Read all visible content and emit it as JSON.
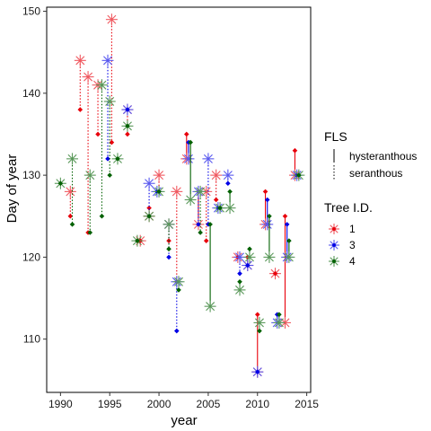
{
  "chart_data": {
    "type": "scatter",
    "xlabel": "year",
    "ylabel": "Day of year",
    "xlim": [
      1988.6,
      2015.4
    ],
    "ylim": [
      103.5,
      150.5
    ],
    "xticks": [
      1990,
      1995,
      2000,
      2005,
      2010,
      2015
    ],
    "yticks": [
      110,
      120,
      130,
      140,
      150
    ],
    "grid": false,
    "legend_position": "right",
    "colors": {
      "1": "#e8000b",
      "3": "#0000e6",
      "4": "#006000"
    },
    "legend": {
      "fls_title": "FLS",
      "fls_items": [
        {
          "label": "hysteranthous",
          "linestyle": "solid"
        },
        {
          "label": "seranthous",
          "linestyle": "dotted"
        }
      ],
      "tree_title": "Tree I.D.",
      "tree_items": [
        {
          "label": "1",
          "key": "1"
        },
        {
          "label": "3",
          "key": "3"
        },
        {
          "label": "4",
          "key": "4"
        }
      ]
    },
    "series": [
      {
        "name": "1",
        "pairs": [
          {
            "x": 1991.0,
            "flower": 128,
            "leaf": 125,
            "fls": "seranthous"
          },
          {
            "x": 1992.0,
            "flower": 144,
            "leaf": 138,
            "fls": "seranthous"
          },
          {
            "x": 1992.8,
            "flower": 142,
            "leaf": 123,
            "fls": "seranthous"
          },
          {
            "x": 1993.8,
            "flower": 141,
            "leaf": 135,
            "fls": "seranthous"
          },
          {
            "x": 1995.2,
            "flower": 149,
            "leaf": 134,
            "fls": "seranthous"
          },
          {
            "x": 1996.8,
            "flower": 138,
            "leaf": 135,
            "fls": "seranthous"
          },
          {
            "x": 1998.1,
            "flower": 122,
            "leaf": 122,
            "fls": "seranthous"
          },
          {
            "x": 1999.0,
            "flower": 125,
            "leaf": 126,
            "fls": "seranthous"
          },
          {
            "x": 2000.0,
            "flower": 130,
            "leaf": 128,
            "fls": "seranthous"
          },
          {
            "x": 2001.0,
            "flower": 124,
            "leaf": 122,
            "fls": "seranthous"
          },
          {
            "x": 2001.8,
            "flower": 128,
            "leaf": 117,
            "fls": "seranthous"
          },
          {
            "x": 2002.8,
            "flower": 132,
            "leaf": 135,
            "fls": "hysteranthous"
          },
          {
            "x": 2004.0,
            "flower": 124,
            "leaf": 128,
            "fls": "hysteranthous"
          },
          {
            "x": 2004.8,
            "flower": 128,
            "leaf": 122,
            "fls": "seranthous"
          },
          {
            "x": 2005.8,
            "flower": 130,
            "leaf": 127,
            "fls": "seranthous"
          },
          {
            "x": 2008.0,
            "flower": 120,
            "leaf": 120,
            "fls": "seranthous"
          },
          {
            "x": 2009.0,
            "flower": 119,
            "leaf": 120,
            "fls": "seranthous"
          },
          {
            "x": 2010.0,
            "flower": 106,
            "leaf": 113,
            "fls": "hysteranthous"
          },
          {
            "x": 2010.8,
            "flower": 124,
            "leaf": 128,
            "fls": "hysteranthous"
          },
          {
            "x": 2011.8,
            "flower": 118,
            "leaf": 118,
            "fls": "seranthous"
          },
          {
            "x": 2012.8,
            "flower": 112,
            "leaf": 125,
            "fls": "hysteranthous"
          },
          {
            "x": 2013.8,
            "flower": 130,
            "leaf": 133,
            "fls": "hysteranthous"
          }
        ]
      },
      {
        "name": "3",
        "pairs": [
          {
            "x": 1994.8,
            "flower": 144,
            "leaf": 132,
            "fls": "seranthous"
          },
          {
            "x": 1996.8,
            "flower": 138,
            "leaf": 138,
            "fls": "seranthous"
          },
          {
            "x": 1999.0,
            "flower": 129,
            "leaf": 125,
            "fls": "seranthous"
          },
          {
            "x": 1999.8,
            "flower": 128,
            "leaf": 128,
            "fls": "seranthous"
          },
          {
            "x": 2001.0,
            "flower": 124,
            "leaf": 120,
            "fls": "seranthous"
          },
          {
            "x": 2001.8,
            "flower": 117,
            "leaf": 111,
            "fls": "seranthous"
          },
          {
            "x": 2003.0,
            "flower": 132,
            "leaf": 134,
            "fls": "hysteranthous"
          },
          {
            "x": 2004.0,
            "flower": 128,
            "leaf": 124,
            "fls": "seranthous"
          },
          {
            "x": 2005.0,
            "flower": 132,
            "leaf": 124,
            "fls": "seranthous"
          },
          {
            "x": 2006.0,
            "flower": 126,
            "leaf": 126,
            "fls": "seranthous"
          },
          {
            "x": 2007.0,
            "flower": 130,
            "leaf": 129,
            "fls": "seranthous"
          },
          {
            "x": 2008.2,
            "flower": 120,
            "leaf": 118,
            "fls": "seranthous"
          },
          {
            "x": 2009.0,
            "flower": 119,
            "leaf": 119,
            "fls": "seranthous"
          },
          {
            "x": 2010.0,
            "flower": 106,
            "leaf": 106,
            "fls": "seranthous"
          },
          {
            "x": 2011.0,
            "flower": 124,
            "leaf": 127,
            "fls": "hysteranthous"
          },
          {
            "x": 2012.0,
            "flower": 112,
            "leaf": 113,
            "fls": "hysteranthous"
          },
          {
            "x": 2013.0,
            "flower": 120,
            "leaf": 124,
            "fls": "hysteranthous"
          },
          {
            "x": 2014.0,
            "flower": 130,
            "leaf": 130,
            "fls": "seranthous"
          }
        ]
      },
      {
        "name": "4",
        "pairs": [
          {
            "x": 1990.0,
            "flower": 129,
            "leaf": 129,
            "fls": "seranthous"
          },
          {
            "x": 1991.2,
            "flower": 132,
            "leaf": 124,
            "fls": "seranthous"
          },
          {
            "x": 1993.0,
            "flower": 130,
            "leaf": 123,
            "fls": "seranthous"
          },
          {
            "x": 1994.2,
            "flower": 141,
            "leaf": 125,
            "fls": "seranthous"
          },
          {
            "x": 1995.0,
            "flower": 139,
            "leaf": 130,
            "fls": "seranthous"
          },
          {
            "x": 1995.8,
            "flower": 132,
            "leaf": 132,
            "fls": "seranthous"
          },
          {
            "x": 1996.8,
            "flower": 136,
            "leaf": 136,
            "fls": "seranthous"
          },
          {
            "x": 1997.8,
            "flower": 122,
            "leaf": 122,
            "fls": "seranthous"
          },
          {
            "x": 1999.0,
            "flower": 125,
            "leaf": 125,
            "fls": "seranthous"
          },
          {
            "x": 2000.0,
            "flower": 128,
            "leaf": 128,
            "fls": "seranthous"
          },
          {
            "x": 2001.0,
            "flower": 124,
            "leaf": 121,
            "fls": "seranthous"
          },
          {
            "x": 2002.0,
            "flower": 117,
            "leaf": 116,
            "fls": "seranthous"
          },
          {
            "x": 2003.2,
            "flower": 127,
            "leaf": 134,
            "fls": "hysteranthous"
          },
          {
            "x": 2004.2,
            "flower": 128,
            "leaf": 123,
            "fls": "seranthous"
          },
          {
            "x": 2005.2,
            "flower": 114,
            "leaf": 124,
            "fls": "hysteranthous"
          },
          {
            "x": 2006.2,
            "flower": 126,
            "leaf": 126,
            "fls": "seranthous"
          },
          {
            "x": 2007.2,
            "flower": 126,
            "leaf": 128,
            "fls": "hysteranthous"
          },
          {
            "x": 2008.2,
            "flower": 116,
            "leaf": 117,
            "fls": "hysteranthous"
          },
          {
            "x": 2009.2,
            "flower": 120,
            "leaf": 121,
            "fls": "hysteranthous"
          },
          {
            "x": 2010.2,
            "flower": 112,
            "leaf": 111,
            "fls": "seranthous"
          },
          {
            "x": 2011.2,
            "flower": 120,
            "leaf": 125,
            "fls": "hysteranthous"
          },
          {
            "x": 2012.2,
            "flower": 112,
            "leaf": 113,
            "fls": "hysteranthous"
          },
          {
            "x": 2013.2,
            "flower": 120,
            "leaf": 122,
            "fls": "hysteranthous"
          },
          {
            "x": 2014.2,
            "flower": 130,
            "leaf": 130,
            "fls": "seranthous"
          }
        ]
      }
    ]
  }
}
